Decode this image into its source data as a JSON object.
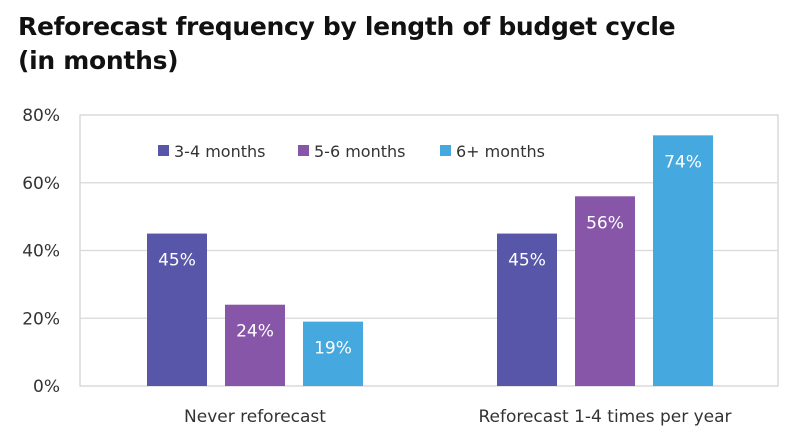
{
  "chart_data": {
    "type": "bar",
    "title": "Reforecast frequency by length of budget cycle (in months)",
    "categories": [
      "Never reforecast",
      "Reforecast 1-4 times per year"
    ],
    "series": [
      {
        "name": "3-4 months",
        "color": "#5856a8",
        "values": [
          45,
          45
        ],
        "labels": [
          "45%",
          "45%"
        ]
      },
      {
        "name": "5-6 months",
        "color": "#8856a8",
        "values": [
          24,
          56
        ],
        "labels": [
          "24%",
          "56%"
        ]
      },
      {
        "name": "6+ months",
        "color": "#45a9df",
        "values": [
          19,
          74
        ],
        "labels": [
          "19%",
          "74%"
        ]
      }
    ],
    "ylim": [
      0,
      80
    ],
    "yticks": [
      0,
      20,
      40,
      60,
      80
    ],
    "ytick_labels": [
      "0%",
      "20%",
      "40%",
      "60%",
      "80%"
    ],
    "xlabel": "",
    "ylabel": "",
    "grid": true,
    "legend_position": "top"
  }
}
